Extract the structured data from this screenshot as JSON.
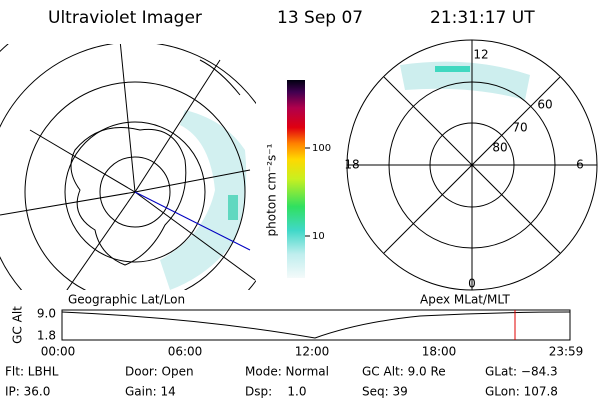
{
  "header": {
    "instrument": "Ultraviolet Imager",
    "date": "13 Sep 07",
    "time": "21:31:17 UT"
  },
  "colorbar": {
    "label": "photon cm⁻²s⁻¹",
    "ticks": [
      "100",
      "10"
    ]
  },
  "polar": {
    "mlt": [
      "12",
      "18",
      "6",
      "0"
    ],
    "mlat": [
      "60",
      "70",
      "80"
    ]
  },
  "timeline": {
    "left_title": "Geographic Lat/Lon",
    "right_title": "Apex MLat/MLT",
    "ylabel": "GC Alt",
    "yticks": [
      "9.0",
      "1.8"
    ],
    "xticks": [
      "00:00",
      "06:00",
      "12:00",
      "18:00",
      "23:59"
    ]
  },
  "status": {
    "rows": [
      [
        "Flt: LBHL",
        "Door: Open",
        "Mode: Normal",
        "GC Alt: 9.0 Re",
        "GLat: −84.3"
      ],
      [
        "IP: 36.0",
        "Gain: 14",
        "Dsp:    1.0",
        "Seq: 39",
        "GLon: 107.8"
      ]
    ]
  }
}
